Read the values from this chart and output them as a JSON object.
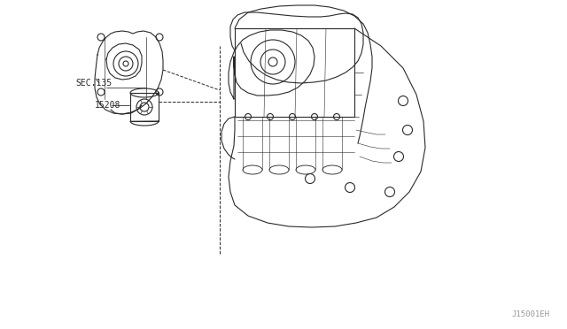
{
  "bg_color": "#ffffff",
  "line_color": "#2a2a2a",
  "label_15208": "15208",
  "label_sec135": "SEC.135",
  "label_diagram_id": "J15001EH",
  "fig_width": 6.4,
  "fig_height": 3.72,
  "dpi": 100
}
